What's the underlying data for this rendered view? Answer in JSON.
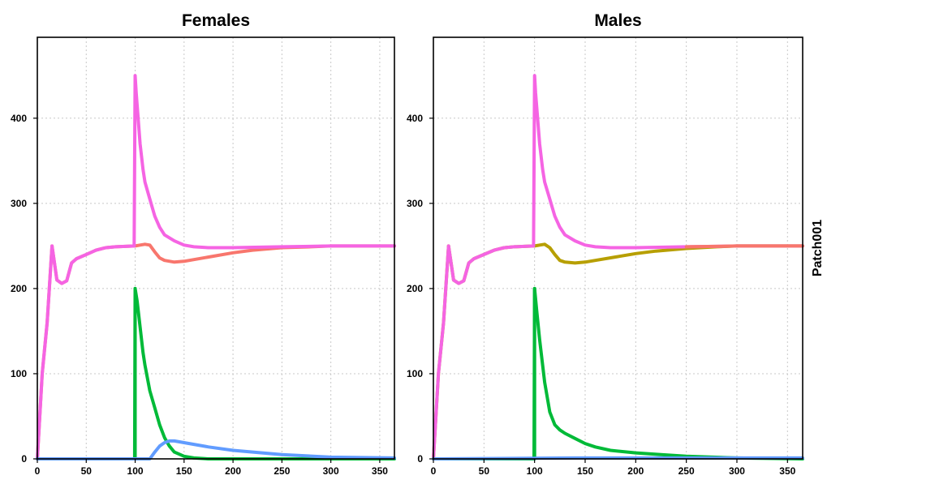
{
  "strip_label": "Patch001",
  "chart_data": [
    {
      "type": "line",
      "title": "Females",
      "xlabel": "",
      "ylabel": "",
      "xlim": [
        0,
        365
      ],
      "ylim": [
        0,
        495
      ],
      "x_ticks": [
        0,
        50,
        100,
        150,
        200,
        250,
        300,
        350
      ],
      "y_ticks": [
        0,
        100,
        200,
        300,
        400
      ],
      "grid": true,
      "legend": "none",
      "series": [
        {
          "color": "#F8766D",
          "x": [
            0,
            5,
            10,
            15,
            20,
            25,
            30,
            35,
            40,
            50,
            60,
            70,
            80,
            90,
            100,
            105,
            110,
            115,
            120,
            125,
            130,
            140,
            150,
            160,
            180,
            200,
            220,
            250,
            280,
            300,
            330,
            365
          ],
          "y": [
            0,
            100,
            160,
            250,
            210,
            206,
            209,
            230,
            235,
            240,
            245,
            248,
            249,
            249.5,
            250,
            251,
            252,
            251,
            243,
            236,
            233,
            231,
            232,
            234,
            238,
            242,
            245,
            248,
            249,
            250,
            250,
            250
          ]
        },
        {
          "color": "#F564E3",
          "x": [
            0,
            5,
            10,
            15,
            20,
            25,
            30,
            35,
            40,
            50,
            60,
            70,
            80,
            90,
            99,
            100,
            101,
            103,
            105,
            108,
            110,
            115,
            120,
            125,
            130,
            140,
            150,
            160,
            175,
            200,
            250,
            300,
            365
          ],
          "y": [
            0,
            100,
            160,
            250,
            210,
            206,
            209,
            230,
            235,
            240,
            245,
            248,
            249,
            249.5,
            250,
            450,
            430,
            400,
            370,
            340,
            325,
            305,
            285,
            272,
            263,
            256,
            251,
            249,
            248,
            248,
            249,
            250,
            250
          ]
        },
        {
          "color": "#00BA38",
          "x": [
            0,
            99,
            99.5,
            100,
            102,
            105,
            108,
            110,
            115,
            120,
            125,
            130,
            135,
            140,
            150,
            160,
            175,
            200,
            250,
            365
          ],
          "y": [
            0,
            0,
            0,
            200,
            185,
            155,
            125,
            110,
            80,
            60,
            40,
            25,
            15,
            8,
            3,
            1,
            0,
            0,
            0,
            0
          ],
          "extra_segment": {
            "x": [
              100,
              100
            ],
            "y": [
              0,
              200
            ]
          }
        },
        {
          "color": "#619CFF",
          "x": [
            0,
            115,
            120,
            125,
            130,
            135,
            140,
            150,
            175,
            200,
            250,
            300,
            365
          ],
          "y": [
            0,
            0,
            8,
            15,
            19,
            21,
            21,
            19,
            14,
            10,
            5,
            2,
            1
          ]
        }
      ]
    },
    {
      "type": "line",
      "title": "Males",
      "xlabel": "",
      "ylabel": "",
      "xlim": [
        0,
        365
      ],
      "ylim": [
        0,
        495
      ],
      "x_ticks": [
        0,
        50,
        100,
        150,
        200,
        250,
        300,
        350
      ],
      "y_ticks": [
        0,
        100,
        200,
        300,
        400
      ],
      "grid": true,
      "legend": "none",
      "series": [
        {
          "color": "#B79F00",
          "x": [
            0,
            5,
            10,
            15,
            20,
            25,
            30,
            35,
            40,
            50,
            60,
            70,
            80,
            90,
            100,
            105,
            110,
            115,
            120,
            125,
            130,
            140,
            150,
            160,
            180,
            200,
            220,
            250,
            280,
            300,
            330,
            365
          ],
          "y": [
            0,
            100,
            160,
            250,
            210,
            206,
            209,
            230,
            235,
            240,
            245,
            248,
            249,
            249.5,
            250,
            251,
            252,
            248,
            240,
            233,
            231,
            230,
            231,
            233,
            237,
            241,
            244,
            247,
            249,
            250,
            250,
            250
          ]
        },
        {
          "color": "#F564E3",
          "x": [
            0,
            5,
            10,
            15,
            20,
            25,
            30,
            35,
            40,
            50,
            60,
            70,
            80,
            90,
            99,
            100,
            101,
            103,
            105,
            108,
            110,
            115,
            120,
            125,
            130,
            140,
            150,
            160,
            175,
            200,
            250,
            300,
            365
          ],
          "y": [
            0,
            100,
            160,
            250,
            210,
            206,
            209,
            230,
            235,
            240,
            245,
            248,
            249,
            249.5,
            250,
            450,
            430,
            400,
            370,
            340,
            325,
            305,
            285,
            272,
            263,
            256,
            251,
            249,
            248,
            248,
            249,
            250,
            250
          ]
        },
        {
          "color": "#F8766D",
          "x": [
            250,
            300,
            365
          ],
          "y": [
            249,
            250,
            250
          ]
        },
        {
          "color": "#00BA38",
          "x": [
            0,
            99,
            99.5,
            100,
            102,
            105,
            108,
            110,
            115,
            120,
            125,
            130,
            140,
            150,
            160,
            175,
            200,
            225,
            250,
            300,
            365
          ],
          "y": [
            0,
            0,
            0,
            200,
            175,
            140,
            110,
            90,
            55,
            40,
            34,
            30,
            24,
            18,
            14,
            10,
            7,
            5,
            3,
            1,
            0
          ],
          "extra_segment": {
            "x": [
              100,
              100
            ],
            "y": [
              0,
              200
            ]
          }
        },
        {
          "color": "#619CFF",
          "x": [
            0,
            140,
            200,
            250,
            300,
            365
          ],
          "y": [
            0,
            1,
            1,
            1,
            1,
            1
          ]
        }
      ]
    }
  ]
}
